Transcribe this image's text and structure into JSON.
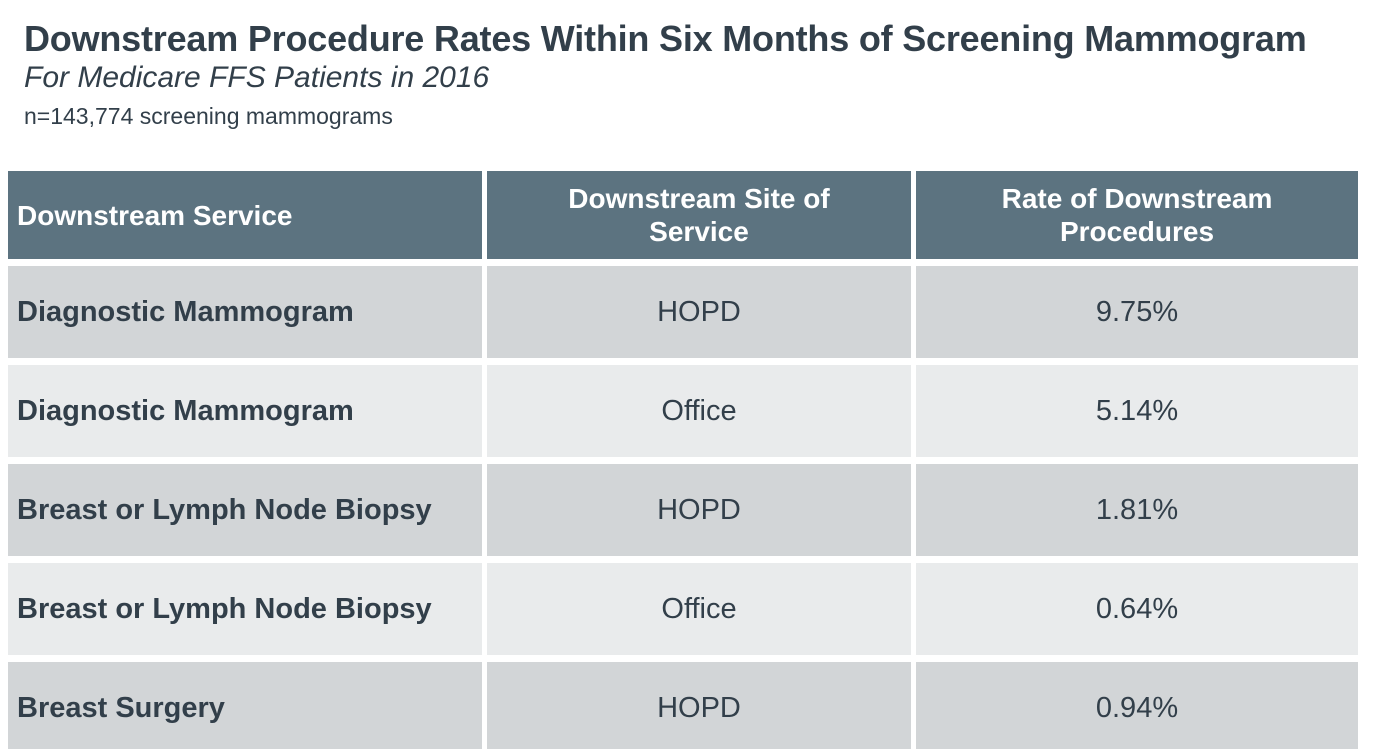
{
  "header": {
    "title": "Downstream Procedure Rates Within Six Months of Screening Mammogram",
    "subtitle": "For Medicare FFS Patients in 2016",
    "sample_size": "n=143,774 screening mammograms"
  },
  "table": {
    "columns": [
      "Downstream Service",
      "Downstream Site of Service",
      "Rate of Downstream Procedures"
    ],
    "rows": [
      {
        "service": "Diagnostic Mammogram",
        "site": "HOPD",
        "rate": "9.75%"
      },
      {
        "service": "Diagnostic Mammogram",
        "site": "Office",
        "rate": "5.14%"
      },
      {
        "service": "Breast or Lymph Node Biopsy",
        "site": "HOPD",
        "rate": "1.81%"
      },
      {
        "service": "Breast or Lymph Node Biopsy",
        "site": "Office",
        "rate": "0.64%"
      },
      {
        "service": "Breast Surgery",
        "site": "HOPD",
        "rate": "0.94%"
      }
    ]
  },
  "colors": {
    "header_bg": "#5C7380",
    "header_text": "#FFFFFF",
    "row_dark": "#D2D5D7",
    "row_light": "#E9EBEC",
    "text_dark": "#323F4A",
    "page_bg": "#FFFFFF"
  },
  "chart_data": {
    "type": "table",
    "title": "Downstream Procedure Rates Within Six Months of Screening Mammogram",
    "subtitle": "For Medicare FFS Patients in 2016",
    "n_screening_mammograms": 143774,
    "columns": [
      "Downstream Service",
      "Downstream Site of Service",
      "Rate of Downstream Procedures"
    ],
    "rows": [
      [
        "Diagnostic Mammogram",
        "HOPD",
        9.75
      ],
      [
        "Diagnostic Mammogram",
        "Office",
        5.14
      ],
      [
        "Breast or Lymph Node Biopsy",
        "HOPD",
        1.81
      ],
      [
        "Breast or Lymph Node Biopsy",
        "Office",
        0.64
      ],
      [
        "Breast Surgery",
        "HOPD",
        0.94
      ]
    ],
    "rate_unit": "percent"
  }
}
